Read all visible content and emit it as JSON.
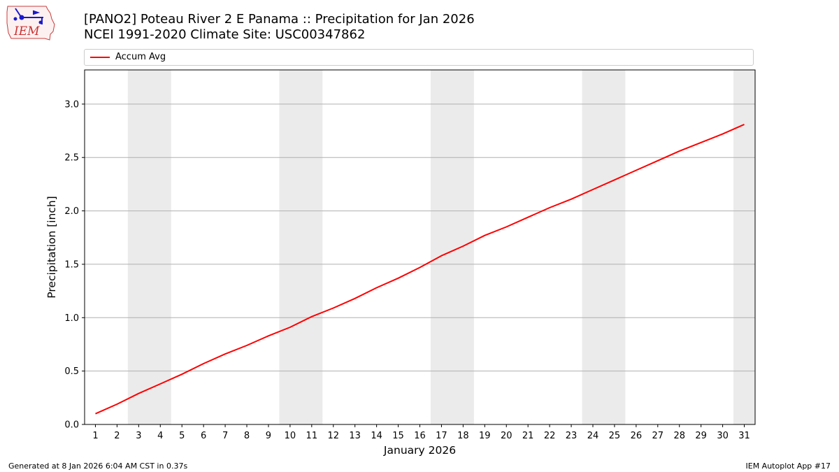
{
  "logo": {
    "text": "IEM",
    "icon": "iem-iowa-logo"
  },
  "header": {
    "title_line1": "[PANO2] Poteau River 2 E Panama :: Precipitation for Jan 2026",
    "title_line2": "NCEI 1991-2020 Climate Site: USC00347862"
  },
  "footer": {
    "left": "Generated at 8 Jan 2026 6:04 AM CST in 0.37s",
    "right": "IEM Autoplot App #17"
  },
  "colors": {
    "line": "#ff0000",
    "weekend_band": "#ebebeb",
    "grid": "#b0b0b0"
  },
  "chart_data": {
    "type": "line",
    "title": "[PANO2] Poteau River 2 E Panama :: Precipitation for Jan 2026",
    "subtitle": "NCEI 1991-2020 Climate Site: USC00347862",
    "xlabel": "January 2026",
    "ylabel": "Precipitation [inch]",
    "xlim": [
      0.5,
      31.5
    ],
    "ylim": [
      0,
      3.32
    ],
    "grid": "horizontal",
    "legend_placement": "top",
    "x_ticks": [
      1,
      2,
      3,
      4,
      5,
      6,
      7,
      8,
      9,
      10,
      11,
      12,
      13,
      14,
      15,
      16,
      17,
      18,
      19,
      20,
      21,
      22,
      23,
      24,
      25,
      26,
      27,
      28,
      29,
      30,
      31
    ],
    "y_ticks": [
      0.0,
      0.5,
      1.0,
      1.5,
      2.0,
      2.5,
      3.0
    ],
    "y_tick_labels": [
      "0.0",
      "0.5",
      "1.0",
      "1.5",
      "2.0",
      "2.5",
      "3.0"
    ],
    "shaded_ranges": [
      [
        2.5,
        4.5
      ],
      [
        9.5,
        11.5
      ],
      [
        16.5,
        18.5
      ],
      [
        23.5,
        25.5
      ],
      [
        30.5,
        31.5
      ]
    ],
    "series": [
      {
        "name": "Accum Avg",
        "color": "#ff0000",
        "x": [
          1,
          2,
          3,
          4,
          5,
          6,
          7,
          8,
          9,
          10,
          11,
          12,
          13,
          14,
          15,
          16,
          17,
          18,
          19,
          20,
          21,
          22,
          23,
          24,
          25,
          26,
          27,
          28,
          29,
          30,
          31
        ],
        "values": [
          0.1,
          0.19,
          0.29,
          0.38,
          0.47,
          0.57,
          0.66,
          0.74,
          0.83,
          0.91,
          1.01,
          1.09,
          1.18,
          1.28,
          1.37,
          1.47,
          1.58,
          1.67,
          1.77,
          1.85,
          1.94,
          2.03,
          2.11,
          2.2,
          2.29,
          2.38,
          2.47,
          2.56,
          2.64,
          2.72,
          2.81
        ]
      }
    ]
  }
}
